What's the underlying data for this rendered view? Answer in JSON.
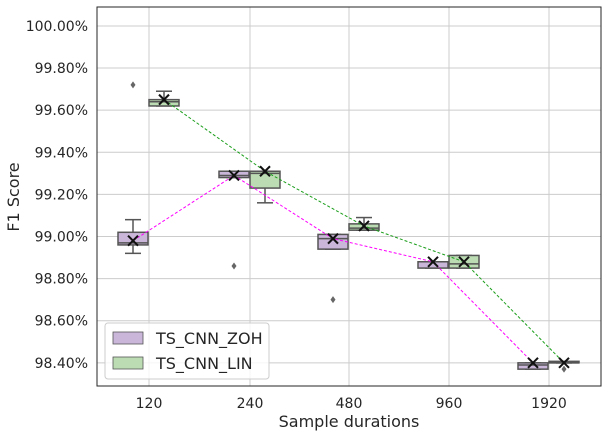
{
  "chart_data": {
    "type": "box",
    "xlabel": "Sample durations",
    "ylabel": "F1 Score",
    "categories": [
      "120",
      "240",
      "480",
      "960",
      "1920"
    ],
    "ylim": [
      0.9829,
      1.0009
    ],
    "yticks": [
      0.984,
      0.986,
      0.988,
      0.99,
      0.992,
      0.994,
      0.996,
      0.998,
      1.0
    ],
    "ytick_labels": [
      "98.40%",
      "98.60%",
      "98.80%",
      "99.00%",
      "99.20%",
      "99.40%",
      "99.60%",
      "99.80%",
      "100.00%"
    ],
    "grid": true,
    "legend_position": "lower-left",
    "series": [
      {
        "name": "TS_CNN_ZOH",
        "color": "#c9b6d8",
        "mean_line_color": "#ff00ff",
        "boxes": [
          {
            "category": "120",
            "whislo": 0.9892,
            "q1": 0.9896,
            "med": 0.9897,
            "q3": 0.9902,
            "whishi": 0.9908,
            "fliers": [
              0.9972
            ],
            "mean": 0.9898
          },
          {
            "category": "240",
            "whislo": 0.9928,
            "q1": 0.9928,
            "med": 0.9929,
            "q3": 0.9931,
            "whishi": 0.9931,
            "fliers": [
              0.9886
            ],
            "mean": 0.9929
          },
          {
            "category": "480",
            "whislo": 0.9894,
            "q1": 0.9894,
            "med": 0.9899,
            "q3": 0.9901,
            "whishi": 0.9901,
            "fliers": [
              0.987
            ],
            "mean": 0.9899
          },
          {
            "category": "960",
            "whislo": 0.9885,
            "q1": 0.9885,
            "med": 0.9888,
            "q3": 0.9888,
            "whishi": 0.9888,
            "fliers": [],
            "mean": 0.9888
          },
          {
            "category": "1920",
            "whislo": 0.9837,
            "q1": 0.9837,
            "med": 0.9839,
            "q3": 0.984,
            "whishi": 0.984,
            "fliers": [],
            "mean": 0.984
          }
        ]
      },
      {
        "name": "TS_CNN_LIN",
        "color": "#bcdcb4",
        "mean_line_color": "#1a9e1a",
        "boxes": [
          {
            "category": "120",
            "whislo": 0.9962,
            "q1": 0.9962,
            "med": 0.9964,
            "q3": 0.9965,
            "whishi": 0.9969,
            "fliers": [],
            "mean": 0.9965
          },
          {
            "category": "240",
            "whislo": 0.9916,
            "q1": 0.9923,
            "med": 0.993,
            "q3": 0.9931,
            "whishi": 0.9931,
            "fliers": [],
            "mean": 0.9931
          },
          {
            "category": "480",
            "whislo": 0.9903,
            "q1": 0.9903,
            "med": 0.9904,
            "q3": 0.9906,
            "whishi": 0.9909,
            "fliers": [],
            "mean": 0.9905
          },
          {
            "category": "960",
            "whislo": 0.9885,
            "q1": 0.9885,
            "med": 0.9887,
            "q3": 0.9891,
            "whishi": 0.9891,
            "fliers": [],
            "mean": 0.9888
          },
          {
            "category": "1920",
            "whislo": 0.984,
            "q1": 0.984,
            "med": 0.984,
            "q3": 0.984,
            "whishi": 0.984,
            "fliers": [
              0.9837
            ],
            "mean": 0.984
          }
        ]
      }
    ]
  }
}
